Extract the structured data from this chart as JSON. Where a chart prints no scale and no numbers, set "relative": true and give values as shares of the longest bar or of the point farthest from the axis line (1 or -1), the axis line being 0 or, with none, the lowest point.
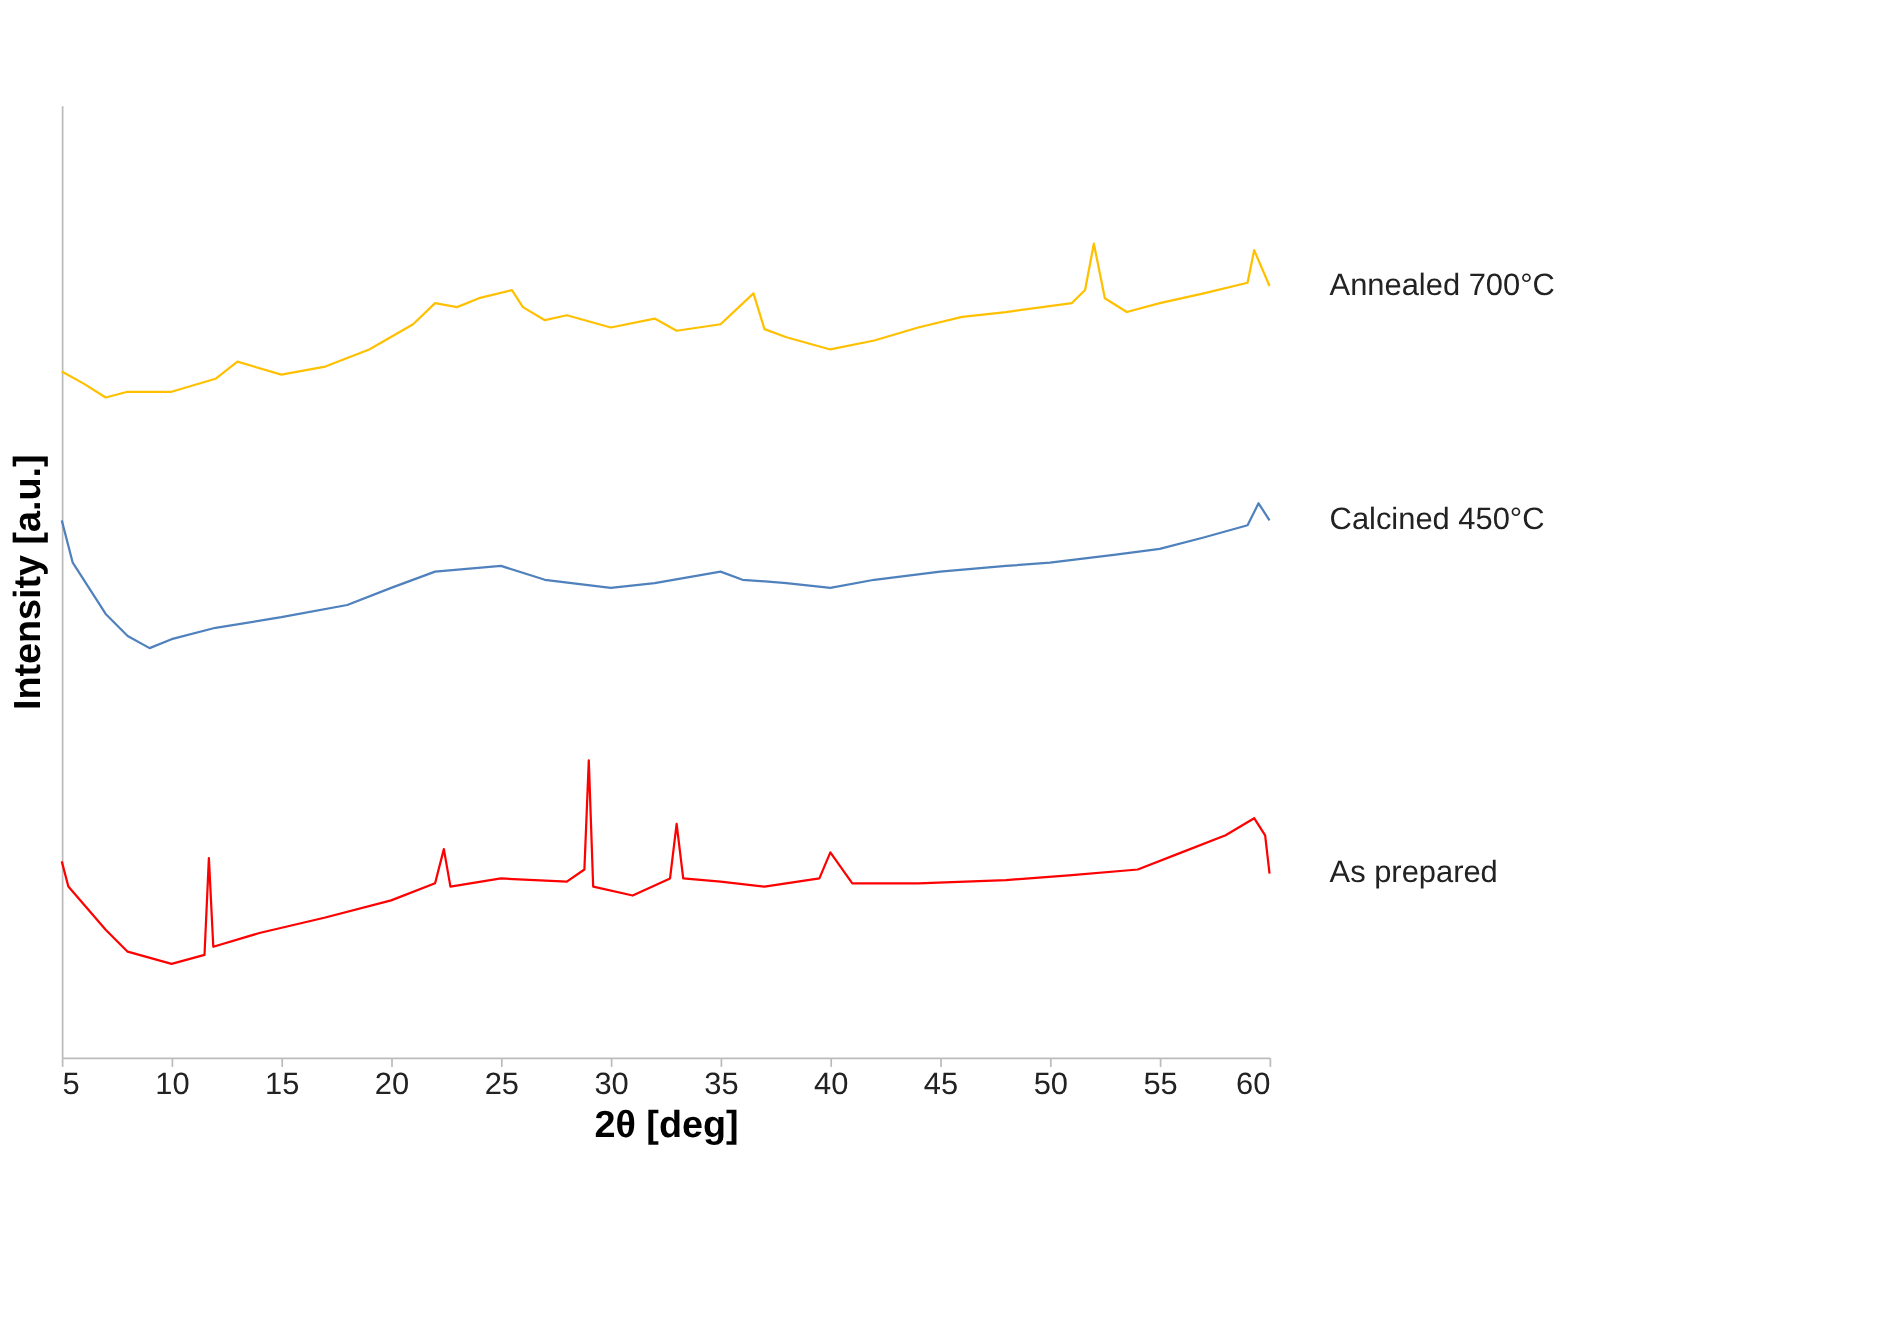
{
  "chart_data": {
    "type": "line",
    "relative": true,
    "xlabel": "2θ [deg]",
    "ylabel": "Intensity [a.u.]",
    "xlim": [
      5,
      60
    ],
    "xticks": [
      5,
      10,
      15,
      20,
      25,
      30,
      35,
      40,
      45,
      50,
      55,
      60
    ],
    "series": [
      {
        "name": "Annealed 700°C",
        "color": "#ffc000",
        "x": [
          5,
          6,
          7,
          8,
          10,
          12,
          13,
          15,
          17,
          19,
          21,
          22,
          23,
          24,
          25.5,
          26,
          27,
          28,
          30,
          32,
          33,
          35,
          36.5,
          37,
          38,
          40,
          42,
          44,
          46,
          48,
          51,
          51.6,
          52,
          52.5,
          53.5,
          55,
          57,
          59,
          59.3,
          60
        ],
        "values": [
          0.843,
          0.828,
          0.811,
          0.818,
          0.818,
          0.834,
          0.855,
          0.839,
          0.849,
          0.87,
          0.901,
          0.927,
          0.922,
          0.933,
          0.943,
          0.922,
          0.906,
          0.912,
          0.897,
          0.908,
          0.893,
          0.901,
          0.939,
          0.895,
          0.885,
          0.87,
          0.881,
          0.897,
          0.91,
          0.916,
          0.927,
          0.943,
          1.0,
          0.933,
          0.916,
          0.927,
          0.939,
          0.952,
          0.992,
          0.948
        ]
      },
      {
        "name": "Calcined 450°C",
        "color": "#4f81bd",
        "x": [
          5,
          5.5,
          7,
          8,
          9,
          10,
          12,
          15,
          18,
          20,
          22,
          25,
          27,
          30,
          32,
          35,
          36,
          38,
          40,
          42,
          45,
          48,
          50,
          53,
          55,
          57,
          59,
          59.5,
          60
        ],
        "values": [
          0.66,
          0.608,
          0.545,
          0.518,
          0.503,
          0.514,
          0.528,
          0.541,
          0.556,
          0.577,
          0.597,
          0.604,
          0.587,
          0.577,
          0.583,
          0.597,
          0.587,
          0.583,
          0.577,
          0.587,
          0.597,
          0.604,
          0.608,
          0.618,
          0.625,
          0.639,
          0.654,
          0.681,
          0.66
        ]
      },
      {
        "name": "As prepared",
        "color": "#ff0000",
        "x": [
          5,
          5.3,
          7,
          8,
          10,
          11.5,
          11.7,
          11.9,
          14,
          17,
          20,
          22,
          22.4,
          22.7,
          25,
          28,
          28.8,
          29,
          29.2,
          31,
          32.7,
          33,
          33.3,
          35,
          37,
          39.5,
          40,
          41,
          44,
          48,
          51,
          54,
          56,
          58,
          59.3,
          59.8,
          60
        ],
        "values": [
          0.241,
          0.21,
          0.157,
          0.13,
          0.115,
          0.126,
          0.245,
          0.136,
          0.153,
          0.172,
          0.193,
          0.214,
          0.256,
          0.21,
          0.22,
          0.216,
          0.231,
          0.365,
          0.21,
          0.199,
          0.22,
          0.287,
          0.22,
          0.216,
          0.21,
          0.22,
          0.252,
          0.214,
          0.214,
          0.218,
          0.224,
          0.231,
          0.252,
          0.273,
          0.294,
          0.273,
          0.226
        ]
      }
    ]
  }
}
